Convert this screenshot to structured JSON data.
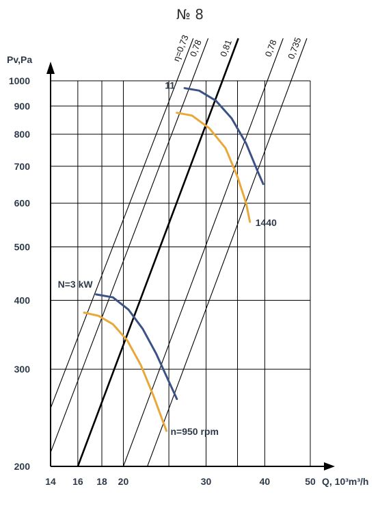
{
  "chart_data": {
    "type": "line",
    "title": "№ 8",
    "xlabel": "Q, 10³m³/h",
    "ylabel": "Pv,Pa",
    "x_scale": "log",
    "y_scale": "log",
    "xlim": [
      14,
      50
    ],
    "ylim": [
      200,
      1000
    ],
    "x_ticks": [
      14,
      16,
      18,
      20,
      30,
      40,
      50
    ],
    "x_gridlines": [
      14,
      16,
      18,
      20,
      25,
      30,
      35,
      40,
      50
    ],
    "y_ticks": [
      200,
      300,
      400,
      500,
      600,
      700,
      800,
      900,
      1000
    ],
    "y_gridlines": [
      300,
      400,
      500,
      600,
      700,
      800,
      900,
      1000
    ],
    "grid": true,
    "efficiency_lines": [
      {
        "label": "η=0,73",
        "bold": false,
        "points": [
          [
            14,
            255
          ],
          [
            26.0,
            1000
          ]
        ]
      },
      {
        "label": "0,78",
        "bold": false,
        "points": [
          [
            14,
            212
          ],
          [
            28.0,
            1000
          ]
        ]
      },
      {
        "label": "0,81",
        "bold": true,
        "points": [
          [
            16.0,
            200
          ],
          [
            32.5,
            1000
          ]
        ]
      },
      {
        "label": "0,78",
        "bold": false,
        "points": [
          [
            20.0,
            200
          ],
          [
            40.5,
            1000
          ]
        ]
      },
      {
        "label": "0,735",
        "bold": false,
        "points": [
          [
            22.5,
            200
          ],
          [
            45.5,
            1000
          ]
        ]
      }
    ],
    "series": [
      {
        "name": "N=3 kW",
        "color": "#3c5186",
        "x": [
          17.5,
          19.0,
          20.5,
          22.0,
          23.5,
          25.0,
          26.0
        ],
        "y": [
          410,
          405,
          385,
          355,
          320,
          285,
          265
        ]
      },
      {
        "name": "n=950 rpm",
        "color": "#e8a83a",
        "x": [
          16.5,
          17.7,
          19.0,
          20.4,
          21.8,
          23.2,
          24.7
        ],
        "y": [
          380,
          375,
          362,
          338,
          305,
          268,
          232
        ]
      },
      {
        "name": "11",
        "color": "#3c5186",
        "x": [
          27.0,
          29.0,
          31.5,
          34.0,
          36.5,
          38.5,
          39.7
        ],
        "y": [
          970,
          960,
          920,
          855,
          770,
          690,
          650
        ]
      },
      {
        "name": "1440",
        "color": "#e8a83a",
        "x": [
          26.0,
          28.0,
          30.5,
          33.0,
          35.0,
          36.5,
          37.2
        ],
        "y": [
          875,
          865,
          820,
          755,
          670,
          600,
          555
        ]
      }
    ]
  }
}
